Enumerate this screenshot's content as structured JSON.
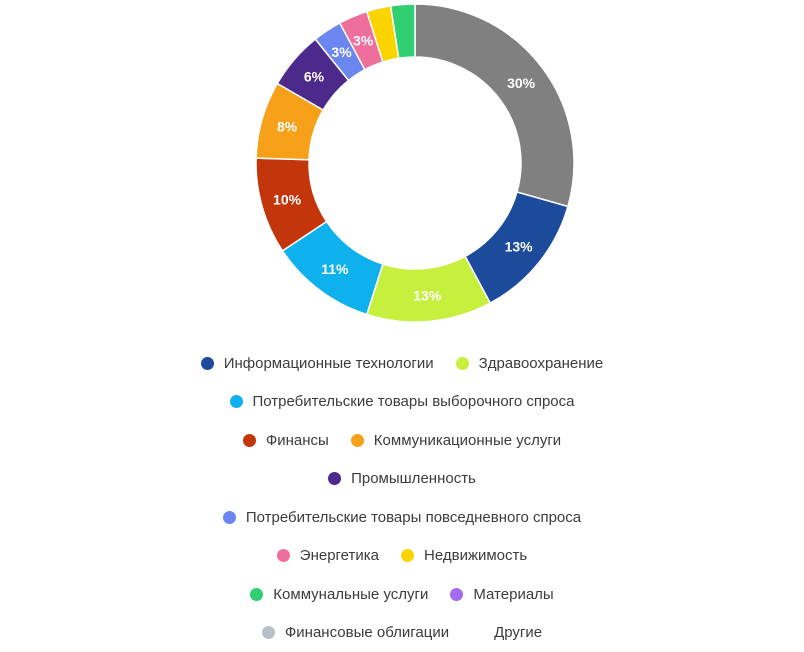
{
  "chart_data": {
    "type": "pie",
    "donut": true,
    "legend_position": "bottom",
    "slices": [
      {
        "name": "Другие",
        "value": 30,
        "label": "30%",
        "color": "#808080"
      },
      {
        "name": "Информационные технологии",
        "value": 13,
        "label": "13%",
        "color": "#1c4b9c"
      },
      {
        "name": "Здравоохранение",
        "value": 13,
        "label": "13%",
        "color": "#c6ef3e"
      },
      {
        "name": "Потребительские товары выборочного спроса",
        "value": 11,
        "label": "11%",
        "color": "#0fb1ec"
      },
      {
        "name": "Финансы",
        "value": 10,
        "label": "10%",
        "color": "#c3360c"
      },
      {
        "name": "Коммуникационные услуги",
        "value": 8,
        "label": "8%",
        "color": "#f7a11b"
      },
      {
        "name": "Промышленность",
        "value": 6,
        "label": "6%",
        "color": "#4b2a8b"
      },
      {
        "name": "Потребительские товары повседневного спроса",
        "value": 3,
        "label": "3%",
        "color": "#6c86f0"
      },
      {
        "name": "Энергетика",
        "value": 3,
        "label": "3%",
        "color": "#ee6f9c"
      },
      {
        "name": "Недвижимость",
        "value": 2.5,
        "label": "",
        "color": "#fbd400"
      },
      {
        "name": "Коммунальные услуги",
        "value": 2.5,
        "label": "",
        "color": "#2fcf72"
      }
    ],
    "legend": [
      [
        {
          "label": "Информационные технологии",
          "color": "#1c4b9c"
        },
        {
          "label": "Здравоохранение",
          "color": "#c6ef3e"
        }
      ],
      [
        {
          "label": "Потребительские товары выборочного спроса",
          "color": "#0fb1ec"
        }
      ],
      [
        {
          "label": "Финансы",
          "color": "#c3360c"
        },
        {
          "label": "Коммуникационные услуги",
          "color": "#f7a11b"
        }
      ],
      [
        {
          "label": "Промышленность",
          "color": "#4b2a8b"
        }
      ],
      [
        {
          "label": "Потребительские товары повседневного спроса",
          "color": "#6c86f0"
        }
      ],
      [
        {
          "label": "Энергетика",
          "color": "#ee6f9c"
        },
        {
          "label": "Недвижимость",
          "color": "#fbd400"
        }
      ],
      [
        {
          "label": "Коммунальные услуги",
          "color": "#2fcf72"
        },
        {
          "label": "Материалы",
          "color": "#a36cef"
        }
      ],
      [
        {
          "label": "Финансовые облигации",
          "color": "#b8c1c9"
        },
        {
          "label": "Другие",
          "color": ""
        }
      ]
    ]
  }
}
